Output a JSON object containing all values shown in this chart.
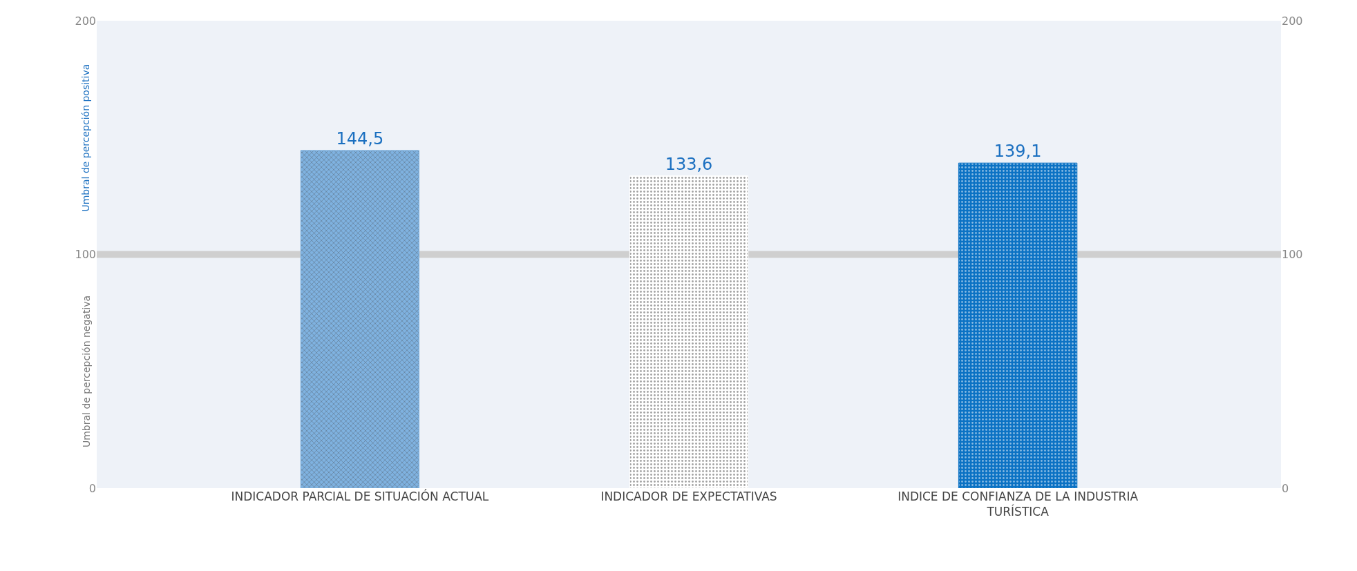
{
  "chart_data": {
    "type": "bar",
    "categories": [
      "INDICADOR PARCIAL DE SITUACIÓN ACTUAL",
      "INDICADOR DE EXPECTATIVAS",
      "INDICE DE CONFIANZA DE LA INDUSTRIA TURÍSTICA"
    ],
    "values": [
      144.5,
      133.6,
      139.1
    ],
    "colors": [
      "#7fb2e0",
      "#ffffff",
      "#0b72c4"
    ],
    "value_labels": [
      "144,5",
      "133,6",
      "139,1"
    ],
    "ylim": [
      0,
      200
    ],
    "yticks": [
      0,
      100,
      200
    ],
    "y2lim": [
      0,
      200
    ],
    "y2ticks": [
      0,
      100,
      200
    ],
    "ref_lines": [
      {
        "axis": "y",
        "value": 100,
        "color": "#cfcfcf"
      }
    ],
    "annotations": [
      "Umbral de percepción positiva",
      "Umbral de percepción negativa"
    ],
    "grid": false
  }
}
